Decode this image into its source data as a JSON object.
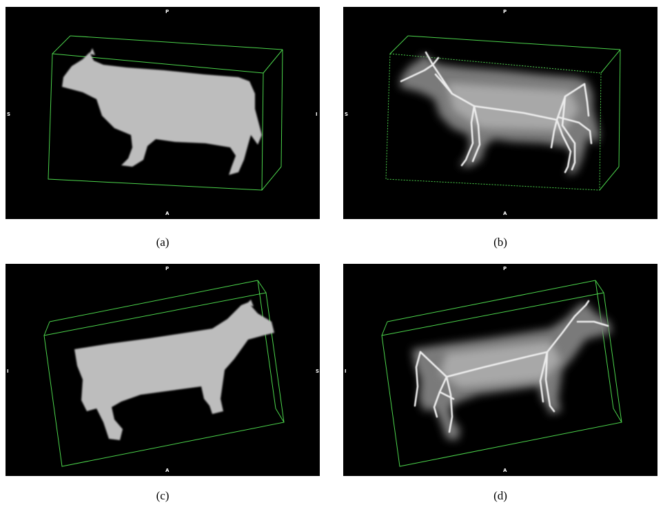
{
  "colors": {
    "background": "#000000",
    "bounding_box": "#4cd64c",
    "volume": "#bdbdbd",
    "skeleton": "#ececec"
  },
  "panels": [
    {
      "id": "a",
      "caption": "(a)",
      "orientation": {
        "top": "P",
        "bottom": "A",
        "left": "S",
        "right": "I"
      },
      "rendering": "segmented-volume"
    },
    {
      "id": "b",
      "caption": "(b)",
      "orientation": {
        "top": "P",
        "bottom": "A",
        "left": "S",
        "right": ""
      },
      "rendering": "volume-with-skeleton"
    },
    {
      "id": "c",
      "caption": "(c)",
      "orientation": {
        "top": "P",
        "bottom": "A",
        "left": "I",
        "right": "S"
      },
      "rendering": "segmented-volume"
    },
    {
      "id": "d",
      "caption": "(d)",
      "orientation": {
        "top": "P",
        "bottom": "A",
        "left": "I",
        "right": ""
      },
      "rendering": "volume-with-skeleton"
    }
  ]
}
